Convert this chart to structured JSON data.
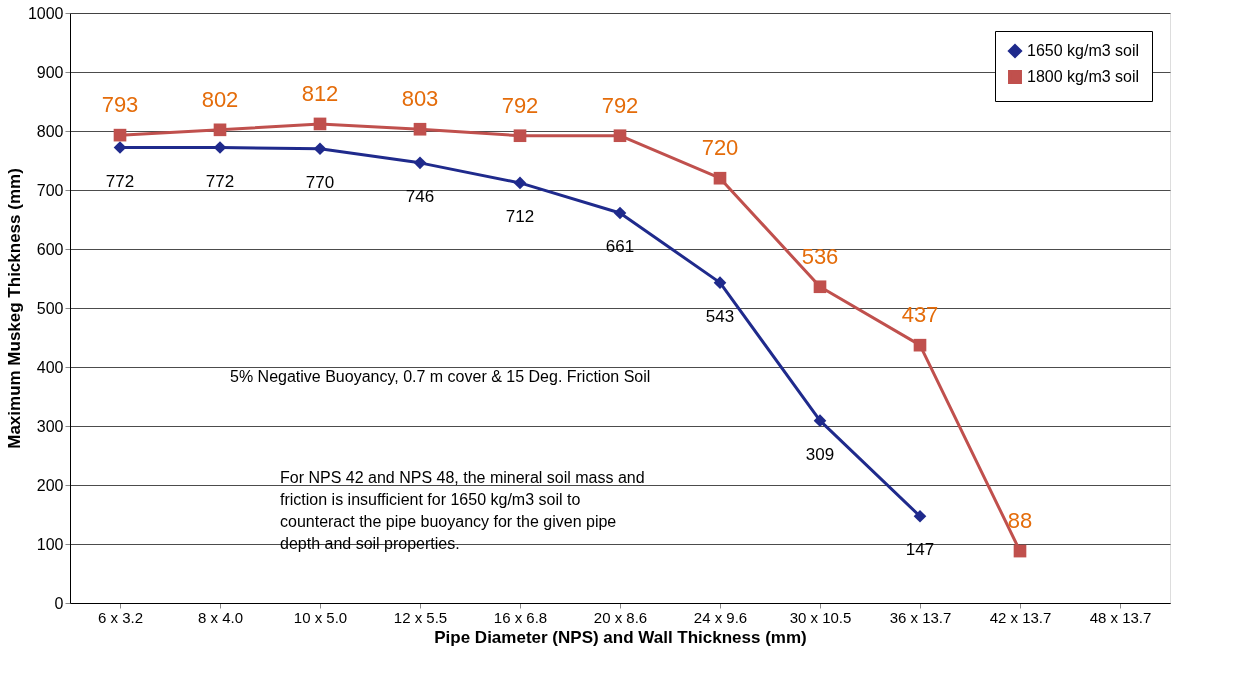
{
  "chart_data": {
    "type": "line",
    "xlabel": "Pipe Diameter (NPS) and Wall Thickness (mm)",
    "ylabel": "Maximum Muskeg Thickness (mm)",
    "categories": [
      "6 x 3.2",
      "8 x 4.0",
      "10 x 5.0",
      "12 x 5.5",
      "16 x 6.8",
      "20 x 8.6",
      "24 x 9.6",
      "30 x 10.5",
      "36 x 13.7",
      "42 x 13.7",
      "48 x 13.7"
    ],
    "series": [
      {
        "name": "1650 kg/m3 soil",
        "color": "#1f2a8c",
        "marker": "diamond",
        "values": [
          772,
          772,
          770,
          746,
          712,
          661,
          543,
          309,
          147,
          null,
          null
        ]
      },
      {
        "name": "1800 kg/m3 soil",
        "color": "#c0504d",
        "marker": "square",
        "values": [
          793,
          802,
          812,
          803,
          792,
          792,
          720,
          536,
          437,
          88,
          null
        ]
      }
    ],
    "ylim": [
      0,
      1000
    ],
    "yticks": [
      0,
      100,
      200,
      300,
      400,
      500,
      600,
      700,
      800,
      900,
      1000
    ],
    "grid": "y",
    "legend": "top right",
    "data_labels": true,
    "annotations": [
      "5% Negative Buoyancy, 0.7 m cover & 15 Deg. Friction Soil",
      "For NPS 42 and NPS 48, the mineral soil mass and friction is insufficient for 1650 kg/m3 soil to counteract the pipe buoyancy for the given pipe depth and soil properties."
    ]
  }
}
